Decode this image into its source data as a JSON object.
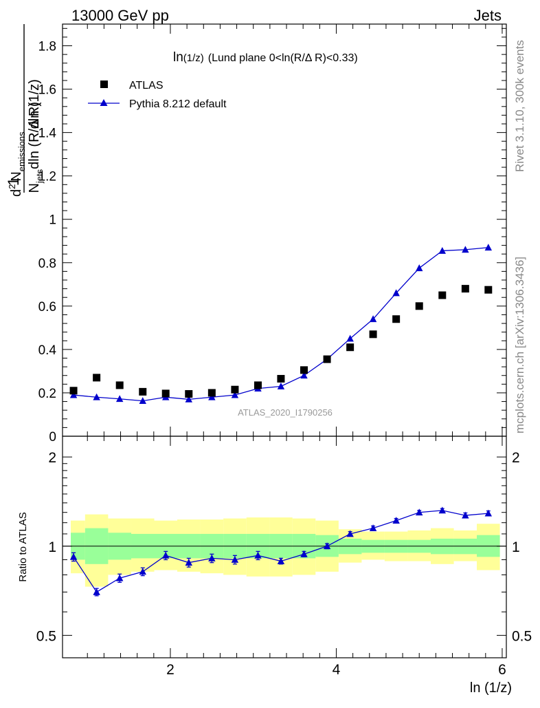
{
  "header": {
    "left": "13000 GeV pp",
    "right": "Jets"
  },
  "side_labels": {
    "rivet": "Rivet 3.1.10,  300k events",
    "mcplots": "mcplots.cern.ch [arXiv:1306.3436]"
  },
  "watermark": "ATLAS_2020_I1790256",
  "colors": {
    "mc": "#0000cc",
    "data": "#000000",
    "band_outer": "#ffff99",
    "band_inner": "#99ff99"
  },
  "chart_data": [
    {
      "type": "scatter",
      "title": "ln(1/z) (Lund plane 0<ln(R/Δ R)<0.33)",
      "title_parts": {
        "main": "ln",
        "sub": "(1/z)",
        "rest": "(Lund plane 0<ln(R/Δ R)<0.33)"
      },
      "ylabel": "1 / N_jets dln (R/Δ R) · d² N_emissions / dln (1/z)",
      "ylabel_parts": {
        "one": "1",
        "n": "N",
        "jets": "jets",
        "dlnR": "dln (R/Δ R)",
        "d2": "d",
        "sq": "2",
        "emN": "N",
        "emissions": "emissions",
        "dlnz": "dln (1/z)"
      },
      "xlim": [
        0.7,
        6.05
      ],
      "ylim": [
        0,
        1.9
      ],
      "yticks": [
        "0",
        "0.2",
        "0.4",
        "0.6",
        "0.8",
        "1",
        "1.2",
        "1.4",
        "1.6",
        "1.8"
      ],
      "legend": {
        "data": "ATLAS",
        "mc": "Pythia 8.212 default",
        "placement": "top-left"
      },
      "x": [
        0.833,
        1.111,
        1.389,
        1.667,
        1.944,
        2.222,
        2.5,
        2.778,
        3.056,
        3.333,
        3.611,
        3.889,
        4.167,
        4.444,
        4.722,
        5.0,
        5.278,
        5.556,
        5.833
      ],
      "series": [
        {
          "name": "ATLAS",
          "values": [
            0.21,
            0.27,
            0.235,
            0.205,
            0.197,
            0.195,
            0.2,
            0.215,
            0.235,
            0.265,
            0.305,
            0.355,
            0.41,
            0.47,
            0.54,
            0.6,
            0.65,
            0.68,
            0.675
          ]
        },
        {
          "name": "Pythia 8.212 default",
          "values": [
            0.19,
            0.18,
            0.172,
            0.163,
            0.18,
            0.17,
            0.18,
            0.19,
            0.22,
            0.23,
            0.28,
            0.355,
            0.45,
            0.54,
            0.66,
            0.775,
            0.855,
            0.86,
            0.87
          ]
        }
      ]
    },
    {
      "type": "line",
      "ylabel": "Ratio to ATLAS",
      "xlabel": "ln (1/z)",
      "ylim": [
        0.42,
        2.35
      ],
      "y_scale": "log",
      "xticks": [
        "2",
        "4",
        "6"
      ],
      "yticks": [
        "0.5",
        "1",
        "2"
      ],
      "x": [
        0.833,
        1.111,
        1.389,
        1.667,
        1.944,
        2.222,
        2.5,
        2.778,
        3.056,
        3.333,
        3.611,
        3.889,
        4.167,
        4.444,
        4.722,
        5.0,
        5.278,
        5.556,
        5.833
      ],
      "ratio": [
        0.92,
        0.7,
        0.78,
        0.82,
        0.93,
        0.88,
        0.91,
        0.9,
        0.93,
        0.89,
        0.94,
        1.0,
        1.1,
        1.15,
        1.22,
        1.3,
        1.32,
        1.27,
        1.29
      ],
      "ratio_err": [
        0.03,
        0.02,
        0.025,
        0.025,
        0.03,
        0.03,
        0.03,
        0.03,
        0.03,
        0.02,
        0.02,
        0.02,
        0.02,
        0.02,
        0.02,
        0.02,
        0.02,
        0.025,
        0.025
      ],
      "band_outer": [
        [
          0.81,
          1.22
        ],
        [
          0.73,
          1.28
        ],
        [
          0.8,
          1.24
        ],
        [
          0.82,
          1.24
        ],
        [
          0.83,
          1.22
        ],
        [
          0.82,
          1.23
        ],
        [
          0.81,
          1.23
        ],
        [
          0.8,
          1.24
        ],
        [
          0.79,
          1.25
        ],
        [
          0.79,
          1.25
        ],
        [
          0.8,
          1.24
        ],
        [
          0.82,
          1.22
        ],
        [
          0.88,
          1.14
        ],
        [
          0.9,
          1.12
        ],
        [
          0.89,
          1.12
        ],
        [
          0.89,
          1.13
        ],
        [
          0.87,
          1.15
        ],
        [
          0.89,
          1.13
        ],
        [
          0.83,
          1.19
        ]
      ],
      "band_inner": [
        [
          0.9,
          1.11
        ],
        [
          0.87,
          1.15
        ],
        [
          0.9,
          1.11
        ],
        [
          0.91,
          1.1
        ],
        [
          0.91,
          1.1
        ],
        [
          0.91,
          1.1
        ],
        [
          0.91,
          1.1
        ],
        [
          0.91,
          1.1
        ],
        [
          0.91,
          1.1
        ],
        [
          0.91,
          1.1
        ],
        [
          0.91,
          1.1
        ],
        [
          0.92,
          1.09
        ],
        [
          0.94,
          1.06
        ],
        [
          0.95,
          1.05
        ],
        [
          0.95,
          1.05
        ],
        [
          0.95,
          1.05
        ],
        [
          0.94,
          1.06
        ],
        [
          0.94,
          1.06
        ],
        [
          0.92,
          1.09
        ]
      ]
    }
  ]
}
